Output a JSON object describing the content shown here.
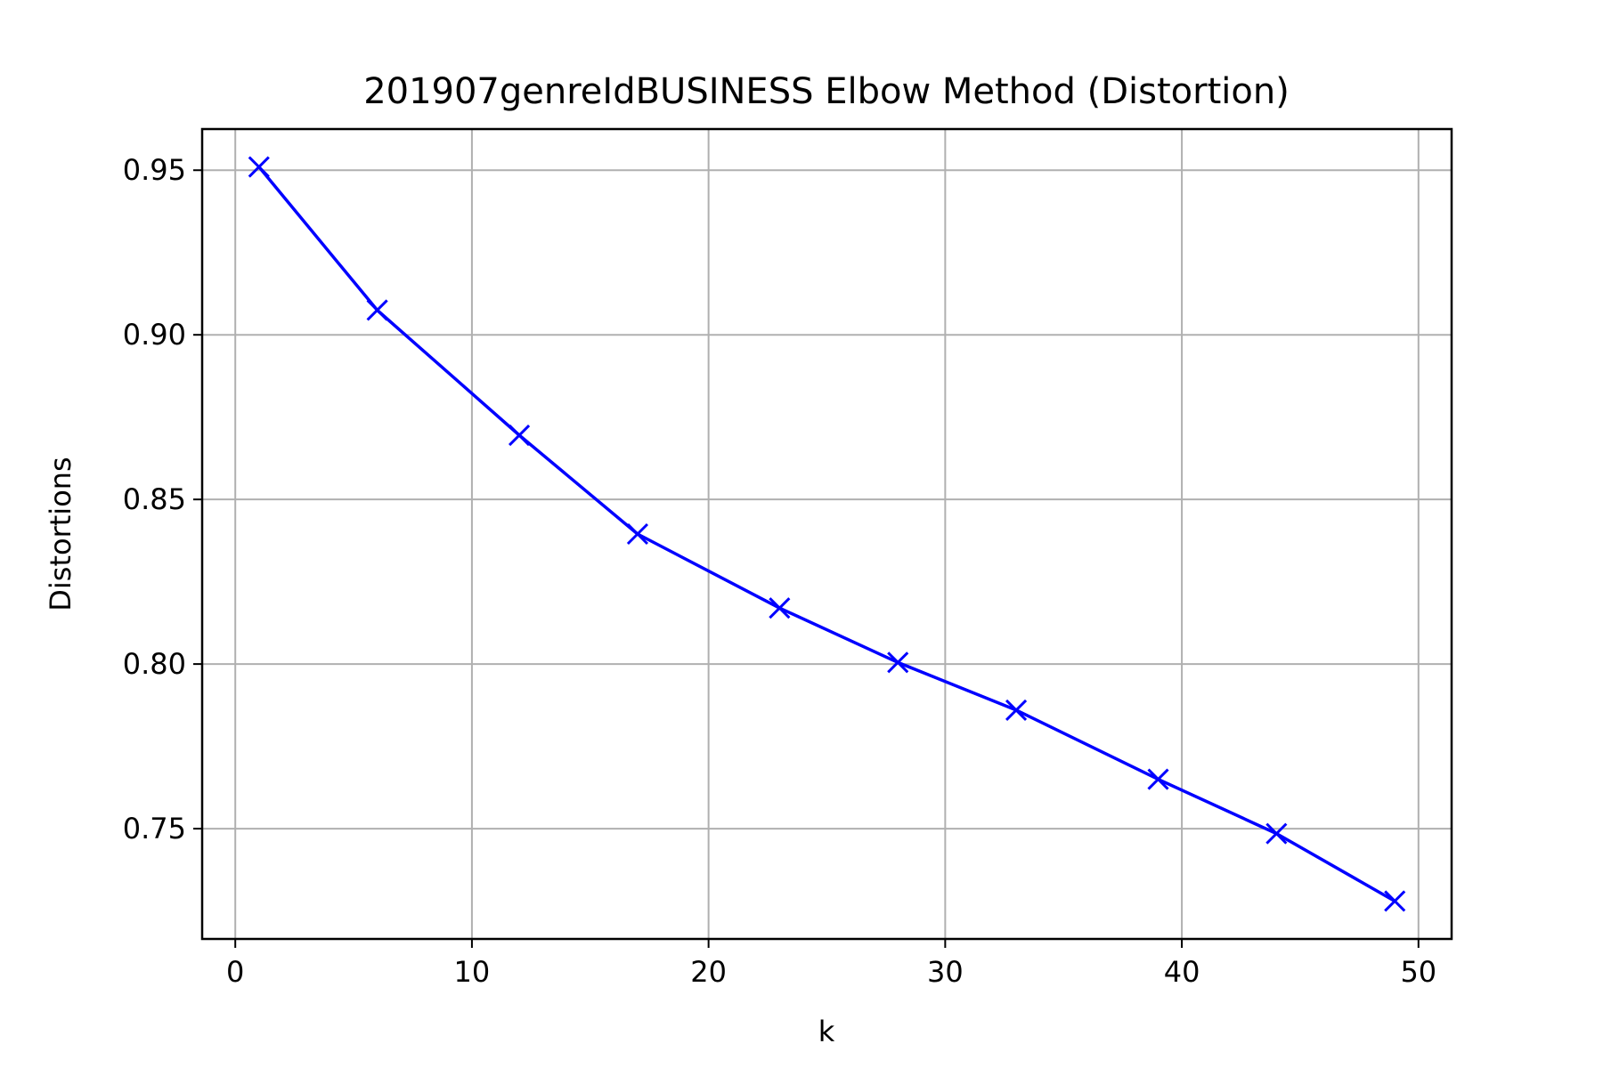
{
  "chart_data": {
    "type": "line",
    "title": "201907genreIdBUSINESS Elbow Method (Distortion)",
    "xlabel": "k",
    "ylabel": "Distortions",
    "xlim": [
      -1.4,
      51.4
    ],
    "ylim": [
      0.7165,
      0.9625
    ],
    "xticks": [
      0,
      10,
      20,
      30,
      40,
      50
    ],
    "yticks": [
      0.75,
      0.8,
      0.85,
      0.9,
      0.95
    ],
    "ytick_labels": [
      "0.75",
      "0.80",
      "0.85",
      "0.90",
      "0.95"
    ],
    "xtick_labels": [
      "0",
      "10",
      "20",
      "30",
      "40",
      "50"
    ],
    "grid": true,
    "series": [
      {
        "name": "distortion",
        "color": "#0000ff",
        "marker": "x",
        "x": [
          1,
          6,
          12,
          17,
          23,
          28,
          33,
          39,
          44,
          49
        ],
        "y": [
          0.951,
          0.9075,
          0.8695,
          0.8395,
          0.817,
          0.8005,
          0.786,
          0.765,
          0.7485,
          0.728
        ]
      }
    ]
  }
}
